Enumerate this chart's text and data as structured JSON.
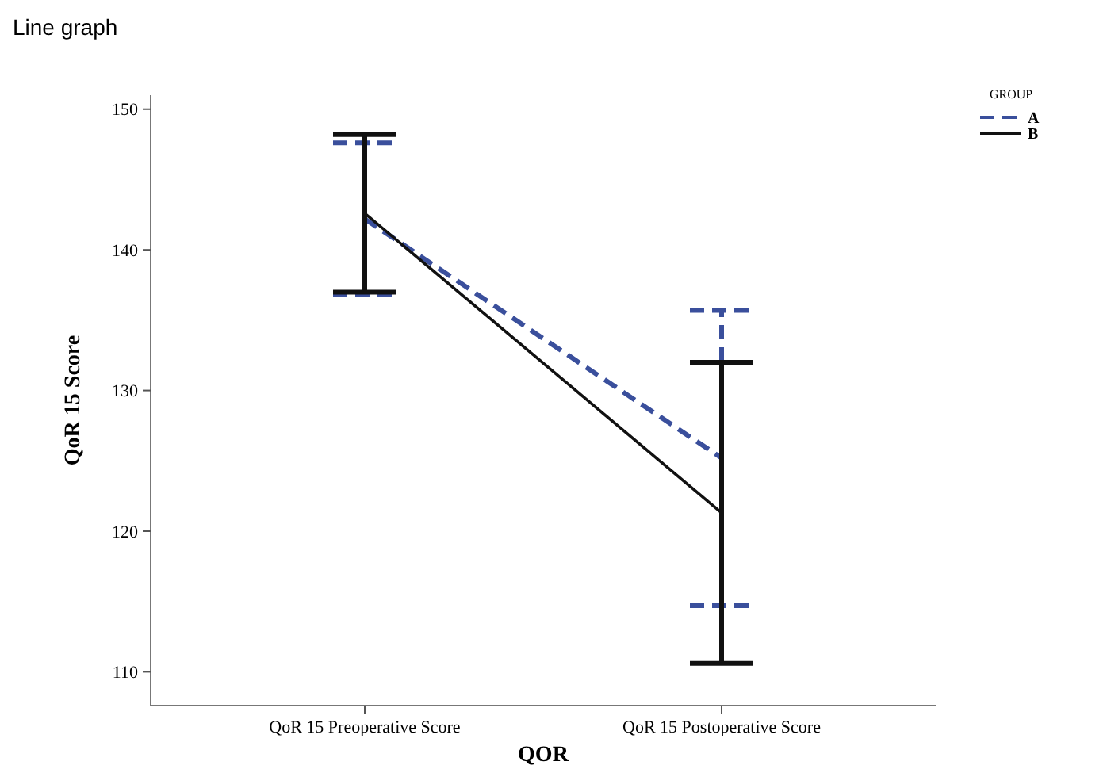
{
  "chart_data": {
    "type": "line",
    "title": "Line graph",
    "xlabel": "QOR",
    "ylabel": "QoR 15 Score",
    "legend_title": "GROUP",
    "legend": "top right",
    "categories": [
      "QoR 15 Preoperative Score",
      "QoR 15 Postoperative Score"
    ],
    "series": [
      {
        "name": "A",
        "color": "#3a4f9c",
        "line_style": "dashed",
        "values": [
          142.2,
          125.2
        ],
        "errors": [
          5.4,
          10.5
        ]
      },
      {
        "name": "B",
        "color": "#111111",
        "line_style": "solid",
        "values": [
          142.6,
          121.3
        ],
        "errors": [
          5.6,
          10.7
        ]
      }
    ],
    "ylim": [
      107.6,
      151
    ],
    "yticks": [
      110,
      120,
      130,
      140,
      150
    ],
    "marker": "none"
  }
}
